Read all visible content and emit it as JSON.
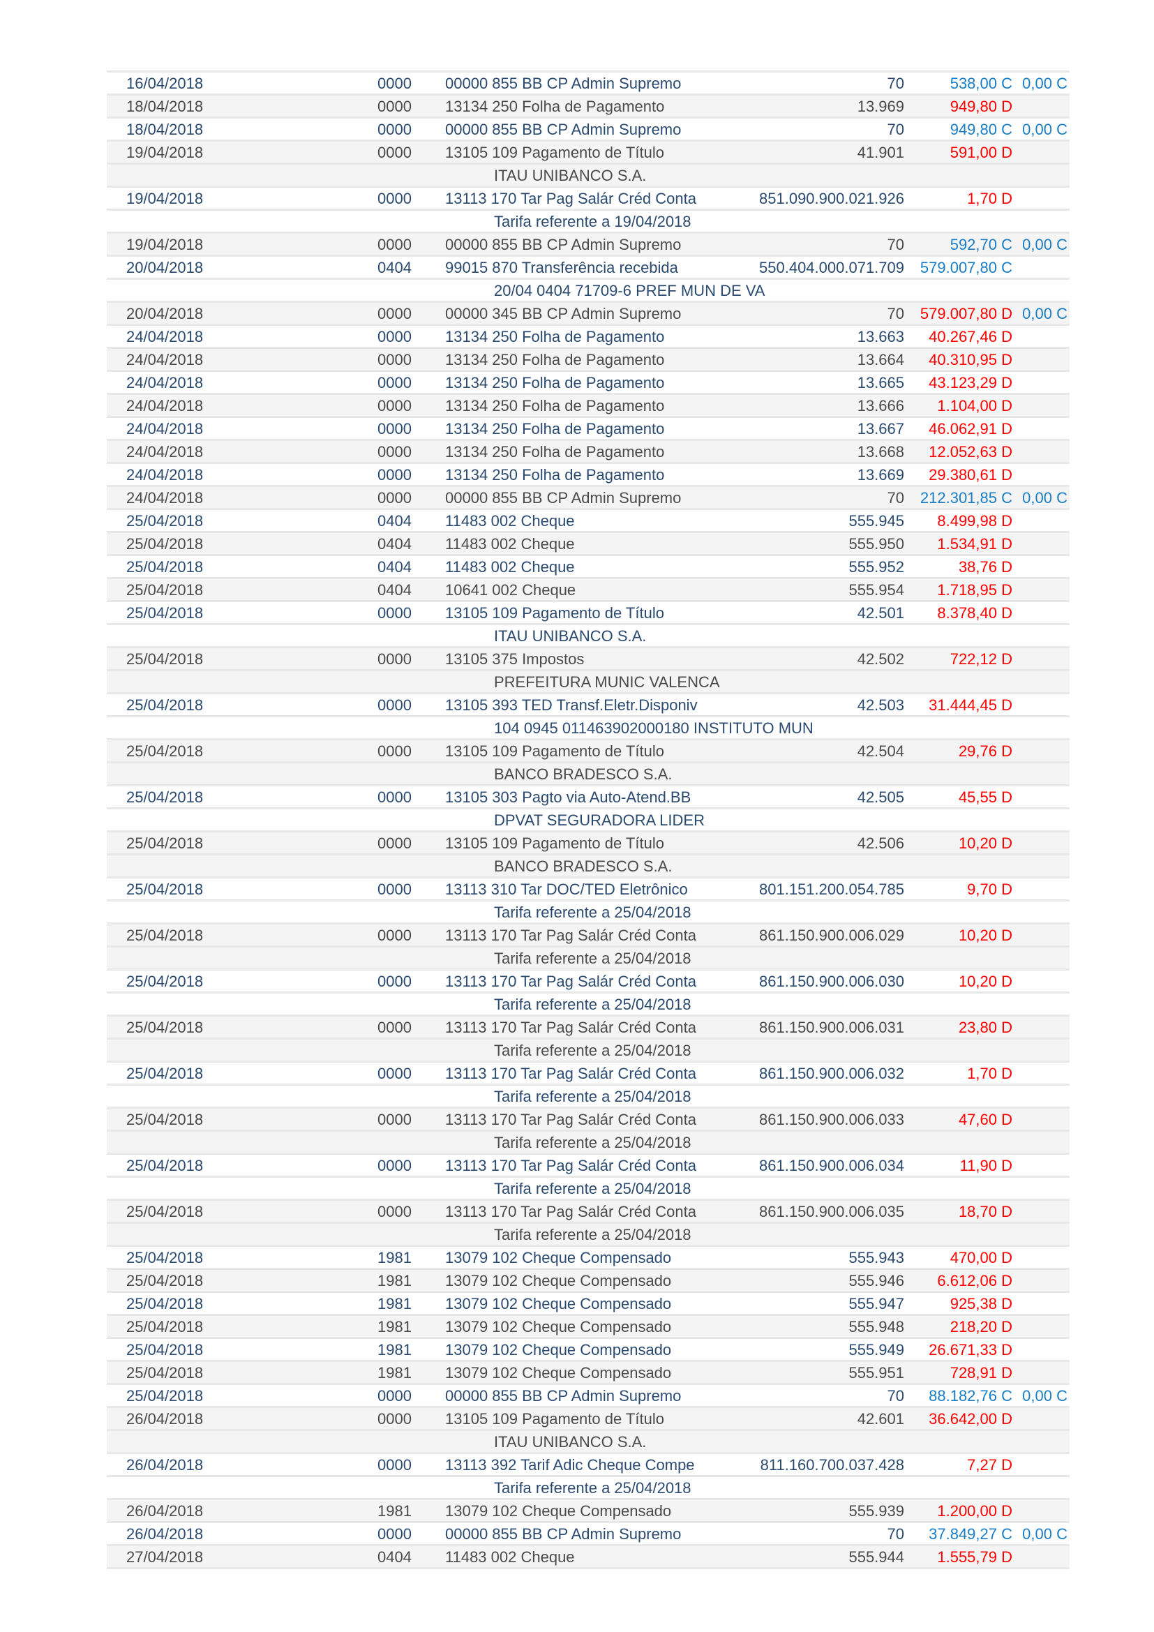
{
  "colors": {
    "credit": "#1a7dc4",
    "debit": "#ff0000",
    "row_alt": "#f4f4f4",
    "text_blue": "#2b4a6f",
    "text_gray": "#4a4a4a"
  },
  "transactions": [
    {
      "date": "16/04/2018",
      "doc": "0000",
      "desc": "00000 855 BB CP Admin Supremo",
      "num": "70",
      "value": "538,00 C",
      "balance": "0,00 C"
    },
    {
      "date": "18/04/2018",
      "doc": "0000",
      "desc": "13134 250 Folha de Pagamento",
      "num": "13.969",
      "value": "949,80 D"
    },
    {
      "date": "18/04/2018",
      "doc": "0000",
      "desc": "00000 855 BB CP Admin Supremo",
      "num": "70",
      "value": "949,80 C",
      "balance": "0,00 C"
    },
    {
      "date": "19/04/2018",
      "doc": "0000",
      "desc": "13105 109 Pagamento de Título",
      "num": "41.901",
      "value": "591,00 D",
      "detail": "ITAU UNIBANCO S.A."
    },
    {
      "date": "19/04/2018",
      "doc": "0000",
      "desc": "13113 170 Tar Pag Salár Créd Conta",
      "num": "851.090.900.021.926",
      "value": "1,70 D",
      "detail": "Tarifa referente a 19/04/2018"
    },
    {
      "date": "19/04/2018",
      "doc": "0000",
      "desc": "00000 855 BB CP Admin Supremo",
      "num": "70",
      "value": "592,70 C",
      "balance": "0,00 C"
    },
    {
      "date": "20/04/2018",
      "doc": "0404",
      "desc": "99015 870 Transferência recebida",
      "num": "550.404.000.071.709",
      "value": "579.007,80 C",
      "detail": "20/04 0404 71709-6 PREF MUN DE VA"
    },
    {
      "date": "20/04/2018",
      "doc": "0000",
      "desc": "00000 345 BB CP Admin Supremo",
      "num": "70",
      "value": "579.007,80 D",
      "balance": "0,00 C"
    },
    {
      "date": "24/04/2018",
      "doc": "0000",
      "desc": "13134 250 Folha de Pagamento",
      "num": "13.663",
      "value": "40.267,46 D"
    },
    {
      "date": "24/04/2018",
      "doc": "0000",
      "desc": "13134 250 Folha de Pagamento",
      "num": "13.664",
      "value": "40.310,95 D"
    },
    {
      "date": "24/04/2018",
      "doc": "0000",
      "desc": "13134 250 Folha de Pagamento",
      "num": "13.665",
      "value": "43.123,29 D"
    },
    {
      "date": "24/04/2018",
      "doc": "0000",
      "desc": "13134 250 Folha de Pagamento",
      "num": "13.666",
      "value": "1.104,00 D"
    },
    {
      "date": "24/04/2018",
      "doc": "0000",
      "desc": "13134 250 Folha de Pagamento",
      "num": "13.667",
      "value": "46.062,91 D"
    },
    {
      "date": "24/04/2018",
      "doc": "0000",
      "desc": "13134 250 Folha de Pagamento",
      "num": "13.668",
      "value": "12.052,63 D"
    },
    {
      "date": "24/04/2018",
      "doc": "0000",
      "desc": "13134 250 Folha de Pagamento",
      "num": "13.669",
      "value": "29.380,61 D"
    },
    {
      "date": "24/04/2018",
      "doc": "0000",
      "desc": "00000 855 BB CP Admin Supremo",
      "num": "70",
      "value": "212.301,85 C",
      "balance": "0,00 C"
    },
    {
      "date": "25/04/2018",
      "doc": "0404",
      "desc": "11483 002 Cheque",
      "num": "555.945",
      "value": "8.499,98 D"
    },
    {
      "date": "25/04/2018",
      "doc": "0404",
      "desc": "11483 002 Cheque",
      "num": "555.950",
      "value": "1.534,91 D"
    },
    {
      "date": "25/04/2018",
      "doc": "0404",
      "desc": "11483 002 Cheque",
      "num": "555.952",
      "value": "38,76 D"
    },
    {
      "date": "25/04/2018",
      "doc": "0404",
      "desc": "10641 002 Cheque",
      "num": "555.954",
      "value": "1.718,95 D"
    },
    {
      "date": "25/04/2018",
      "doc": "0000",
      "desc": "13105 109 Pagamento de Título",
      "num": "42.501",
      "value": "8.378,40 D",
      "detail": "ITAU UNIBANCO S.A."
    },
    {
      "date": "25/04/2018",
      "doc": "0000",
      "desc": "13105 375 Impostos",
      "num": "42.502",
      "value": "722,12 D",
      "detail": "PREFEITURA MUNIC VALENCA"
    },
    {
      "date": "25/04/2018",
      "doc": "0000",
      "desc": "13105 393 TED Transf.Eletr.Disponiv",
      "num": "42.503",
      "value": "31.444,45 D",
      "detail": "104 0945 011463902000180 INSTITUTO MUN"
    },
    {
      "date": "25/04/2018",
      "doc": "0000",
      "desc": "13105 109 Pagamento de Título",
      "num": "42.504",
      "value": "29,76 D",
      "detail": "BANCO BRADESCO S.A."
    },
    {
      "date": "25/04/2018",
      "doc": "0000",
      "desc": "13105 303 Pagto via Auto-Atend.BB",
      "num": "42.505",
      "value": "45,55 D",
      "detail": "DPVAT SEGURADORA LIDER"
    },
    {
      "date": "25/04/2018",
      "doc": "0000",
      "desc": "13105 109 Pagamento de Título",
      "num": "42.506",
      "value": "10,20 D",
      "detail": "BANCO BRADESCO S.A."
    },
    {
      "date": "25/04/2018",
      "doc": "0000",
      "desc": "13113 310 Tar DOC/TED Eletrônico",
      "num": "801.151.200.054.785",
      "value": "9,70 D",
      "detail": "Tarifa referente a 25/04/2018"
    },
    {
      "date": "25/04/2018",
      "doc": "0000",
      "desc": "13113 170 Tar Pag Salár Créd Conta",
      "num": "861.150.900.006.029",
      "value": "10,20 D",
      "detail": "Tarifa referente a 25/04/2018"
    },
    {
      "date": "25/04/2018",
      "doc": "0000",
      "desc": "13113 170 Tar Pag Salár Créd Conta",
      "num": "861.150.900.006.030",
      "value": "10,20 D",
      "detail": "Tarifa referente a 25/04/2018"
    },
    {
      "date": "25/04/2018",
      "doc": "0000",
      "desc": "13113 170 Tar Pag Salár Créd Conta",
      "num": "861.150.900.006.031",
      "value": "23,80 D",
      "detail": "Tarifa referente a 25/04/2018"
    },
    {
      "date": "25/04/2018",
      "doc": "0000",
      "desc": "13113 170 Tar Pag Salár Créd Conta",
      "num": "861.150.900.006.032",
      "value": "1,70 D",
      "detail": "Tarifa referente a 25/04/2018"
    },
    {
      "date": "25/04/2018",
      "doc": "0000",
      "desc": "13113 170 Tar Pag Salár Créd Conta",
      "num": "861.150.900.006.033",
      "value": "47,60 D",
      "detail": "Tarifa referente a 25/04/2018"
    },
    {
      "date": "25/04/2018",
      "doc": "0000",
      "desc": "13113 170 Tar Pag Salár Créd Conta",
      "num": "861.150.900.006.034",
      "value": "11,90 D",
      "detail": "Tarifa referente a 25/04/2018"
    },
    {
      "date": "25/04/2018",
      "doc": "0000",
      "desc": "13113 170 Tar Pag Salár Créd Conta",
      "num": "861.150.900.006.035",
      "value": "18,70 D",
      "detail": "Tarifa referente a 25/04/2018"
    },
    {
      "date": "25/04/2018",
      "doc": "1981",
      "desc": "13079 102 Cheque Compensado",
      "num": "555.943",
      "value": "470,00 D"
    },
    {
      "date": "25/04/2018",
      "doc": "1981",
      "desc": "13079 102 Cheque Compensado",
      "num": "555.946",
      "value": "6.612,06 D"
    },
    {
      "date": "25/04/2018",
      "doc": "1981",
      "desc": "13079 102 Cheque Compensado",
      "num": "555.947",
      "value": "925,38 D"
    },
    {
      "date": "25/04/2018",
      "doc": "1981",
      "desc": "13079 102 Cheque Compensado",
      "num": "555.948",
      "value": "218,20 D"
    },
    {
      "date": "25/04/2018",
      "doc": "1981",
      "desc": "13079 102 Cheque Compensado",
      "num": "555.949",
      "value": "26.671,33 D"
    },
    {
      "date": "25/04/2018",
      "doc": "1981",
      "desc": "13079 102 Cheque Compensado",
      "num": "555.951",
      "value": "728,91 D"
    },
    {
      "date": "25/04/2018",
      "doc": "0000",
      "desc": "00000 855 BB CP Admin Supremo",
      "num": "70",
      "value": "88.182,76 C",
      "balance": "0,00 C"
    },
    {
      "date": "26/04/2018",
      "doc": "0000",
      "desc": "13105 109 Pagamento de Título",
      "num": "42.601",
      "value": "36.642,00 D",
      "detail": "ITAU UNIBANCO S.A."
    },
    {
      "date": "26/04/2018",
      "doc": "0000",
      "desc": "13113 392 Tarif Adic Cheque Compe",
      "num": "811.160.700.037.428",
      "value": "7,27 D",
      "detail": "Tarifa referente a 25/04/2018"
    },
    {
      "date": "26/04/2018",
      "doc": "1981",
      "desc": "13079 102 Cheque Compensado",
      "num": "555.939",
      "value": "1.200,00 D"
    },
    {
      "date": "26/04/2018",
      "doc": "0000",
      "desc": "00000 855 BB CP Admin Supremo",
      "num": "70",
      "value": "37.849,27 C",
      "balance": "0,00 C"
    },
    {
      "date": "27/04/2018",
      "doc": "0404",
      "desc": "11483 002 Cheque",
      "num": "555.944",
      "value": "1.555,79 D"
    }
  ]
}
